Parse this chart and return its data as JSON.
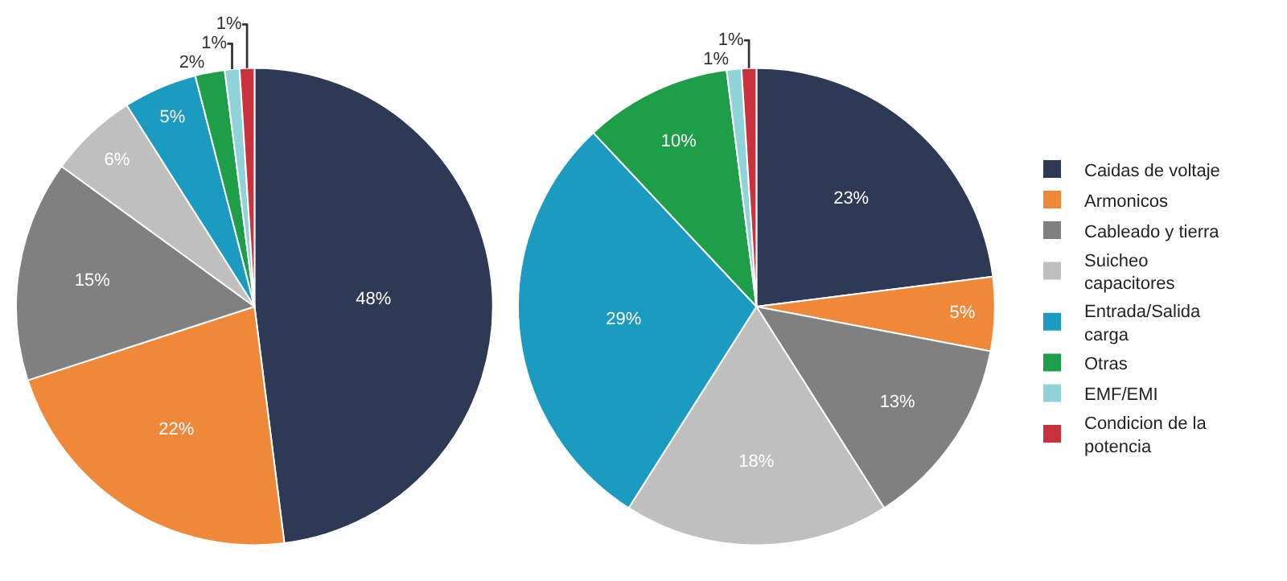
{
  "chart_data": {
    "type": "pie",
    "categories": [
      "Caidas de voltaje",
      "Armonicos",
      "Cableado y tierra",
      "Suicheo capacitores",
      "Entrada/Salida carga",
      "Otras",
      "EMF/EMI",
      "Condicion de la potencia"
    ],
    "colors": [
      "#2e3a55",
      "#f0883a",
      "#808080",
      "#bfbfbf",
      "#1a9bbf",
      "#1e9e48",
      "#8fd3d8",
      "#c8323e"
    ],
    "legend": "right",
    "series": [
      {
        "values": [
          48,
          22,
          15,
          6,
          5,
          2,
          1,
          1
        ],
        "value_labels": [
          "48%",
          "22%",
          "15%",
          "6%",
          "5%",
          "2%",
          "1%",
          "1%"
        ]
      },
      {
        "values": [
          23,
          5,
          13,
          18,
          29,
          10,
          1,
          1
        ],
        "value_labels": [
          "23%",
          "5%",
          "13%",
          "18%",
          "29%",
          "10%",
          "1%",
          "1%"
        ]
      }
    ]
  }
}
